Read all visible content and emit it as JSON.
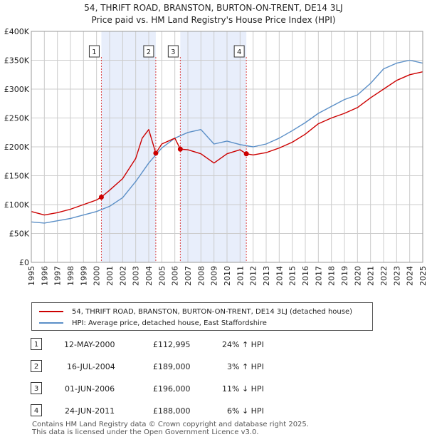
{
  "title_line1": "54, THRIFT ROAD, BRANSTON, BURTON-ON-TRENT, DE14 3LJ",
  "title_line2": "Price paid vs. HM Land Registry's House Price Index (HPI)",
  "legend": {
    "property": "54, THRIFT ROAD, BRANSTON, BURTON-ON-TRENT, DE14 3LJ (detached house)",
    "hpi": "HPI: Average price, detached house, East Staffordshire"
  },
  "colors": {
    "property": "#cc0000",
    "hpi": "#5b8fc7",
    "band": "#e8eefb",
    "grid": "#cccccc"
  },
  "sales": [
    {
      "num": "1",
      "date": "12-MAY-2000",
      "price": "£112,995",
      "hpi": "24% ↑ HPI"
    },
    {
      "num": "2",
      "date": "16-JUL-2004",
      "price": "£189,000",
      "hpi": "3% ↑ HPI"
    },
    {
      "num": "3",
      "date": "01-JUN-2006",
      "price": "£196,000",
      "hpi": "11% ↓ HPI"
    },
    {
      "num": "4",
      "date": "24-JUN-2011",
      "price": "£188,000",
      "hpi": "6% ↓ HPI"
    }
  ],
  "footer_line1": "Contains HM Land Registry data © Crown copyright and database right 2025.",
  "footer_line2": "This data is licensed under the Open Government Licence v3.0.",
  "chart_data": {
    "type": "line",
    "xlim": [
      1995,
      2025
    ],
    "ylim": [
      0,
      400000
    ],
    "y_ticks": [
      0,
      50000,
      100000,
      150000,
      200000,
      250000,
      300000,
      350000,
      400000
    ],
    "y_tick_labels": [
      "£0",
      "£50K",
      "£100K",
      "£150K",
      "£200K",
      "£250K",
      "£300K",
      "£350K",
      "£400K"
    ],
    "x_ticks": [
      "1995",
      "1996",
      "1997",
      "1998",
      "1999",
      "2000",
      "2001",
      "2002",
      "2003",
      "2004",
      "2005",
      "2006",
      "2007",
      "2008",
      "2009",
      "2010",
      "2011",
      "2012",
      "2013",
      "2014",
      "2015",
      "2016",
      "2017",
      "2018",
      "2019",
      "2020",
      "2021",
      "2022",
      "2023",
      "2024",
      "2025"
    ],
    "sale_markers": [
      {
        "label": "1",
        "x": 2000.37,
        "y": 112995
      },
      {
        "label": "2",
        "x": 2004.54,
        "y": 189000
      },
      {
        "label": "3",
        "x": 2006.42,
        "y": 196000
      },
      {
        "label": "4",
        "x": 2011.48,
        "y": 188000
      }
    ],
    "shaded_bands": [
      [
        2000.37,
        2004.54
      ],
      [
        2006.42,
        2011.48
      ]
    ],
    "series": [
      {
        "name": "54, THRIFT ROAD, BRANSTON, BURTON-ON-TRENT, DE14 3LJ (detached house)",
        "x": [
          1995,
          1996,
          1997,
          1998,
          1999,
          2000,
          2000.37,
          2001,
          2002,
          2003,
          2003.5,
          2004,
          2004.54,
          2005,
          2006,
          2006.42,
          2007,
          2008,
          2009,
          2010,
          2011,
          2011.48,
          2012,
          2013,
          2014,
          2015,
          2016,
          2017,
          2018,
          2019,
          2020,
          2021,
          2022,
          2023,
          2024,
          2025
        ],
        "values": [
          88000,
          82000,
          86000,
          92000,
          100000,
          108000,
          112995,
          125000,
          145000,
          180000,
          215000,
          230000,
          189000,
          205000,
          215000,
          196000,
          195000,
          188000,
          172000,
          188000,
          195000,
          188000,
          186000,
          190000,
          198000,
          208000,
          222000,
          240000,
          250000,
          258000,
          268000,
          285000,
          300000,
          315000,
          325000,
          330000
        ]
      },
      {
        "name": "HPI: Average price, detached house, East Staffordshire",
        "x": [
          1995,
          1996,
          1997,
          1998,
          1999,
          2000,
          2001,
          2002,
          2003,
          2004,
          2005,
          2006,
          2007,
          2008,
          2009,
          2010,
          2011,
          2012,
          2013,
          2014,
          2015,
          2016,
          2017,
          2018,
          2019,
          2020,
          2021,
          2022,
          2023,
          2024,
          2025
        ],
        "values": [
          70000,
          68000,
          72000,
          76000,
          82000,
          88000,
          97000,
          112000,
          140000,
          172000,
          198000,
          215000,
          225000,
          230000,
          205000,
          210000,
          204000,
          200000,
          205000,
          215000,
          228000,
          242000,
          258000,
          270000,
          282000,
          290000,
          310000,
          335000,
          345000,
          350000,
          345000
        ]
      }
    ]
  }
}
